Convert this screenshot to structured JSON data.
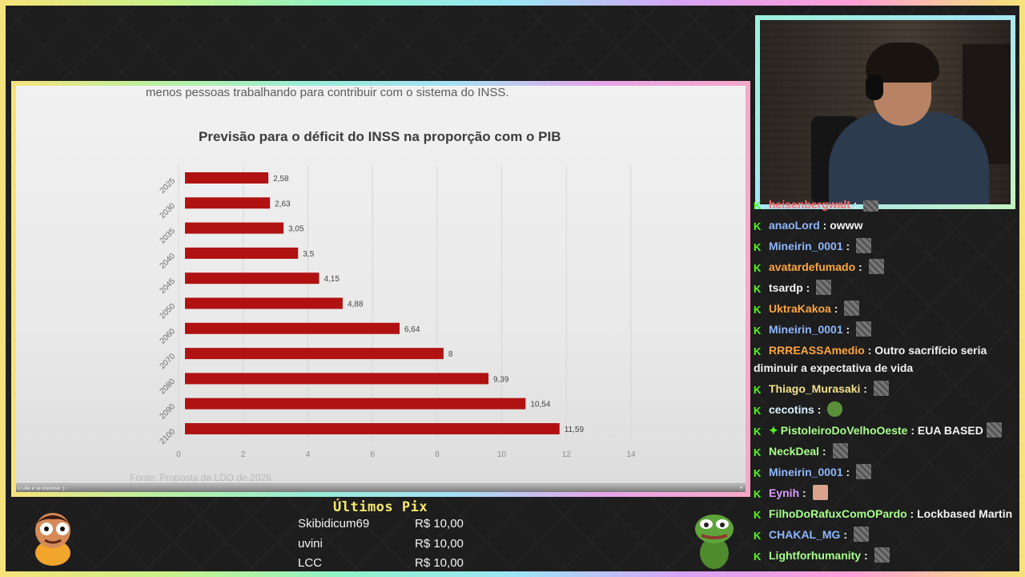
{
  "video": {
    "intro_text": "menos pessoas trabalhando para contribuir com o sistema do INSS.",
    "source_text": "Fonte: Proposta da LDO de 2026",
    "player_text": "o Like e se inscreve :)  ›",
    "player_icon": "⏸"
  },
  "chart_data": {
    "type": "bar",
    "orientation": "horizontal",
    "title": "Previsão para o déficit do INSS na proporção com o PIB",
    "categories": [
      "2025",
      "2030",
      "2035",
      "2040",
      "2045",
      "2050",
      "2060",
      "2070",
      "2080",
      "2090",
      "2100"
    ],
    "values": [
      2.58,
      2.63,
      3.05,
      3.5,
      4.15,
      4.88,
      6.64,
      8,
      9.39,
      10.54,
      11.59
    ],
    "value_labels": [
      "2,58",
      "2,63",
      "3,05",
      "3,5",
      "4,15",
      "4,88",
      "6,64",
      "8",
      "9,39",
      "10,54",
      "11,59"
    ],
    "xticks": [
      "0",
      "2",
      "4",
      "6",
      "8",
      "10",
      "12",
      "14"
    ],
    "xlim": [
      0,
      14
    ],
    "bar_color": "#b01212",
    "grid": true
  },
  "chat": {
    "messages": [
      {
        "user": "heisenbergwalt",
        "text": "",
        "color": "#ff6b6b",
        "emote": "gray"
      },
      {
        "user": "anaoLord",
        "text": "owww",
        "color": "#8fb7ff",
        "emote": ""
      },
      {
        "user": "Mineirin_0001",
        "text": "",
        "color": "#8fb7ff",
        "emote": "gray"
      },
      {
        "user": "avatardefumado",
        "text": "",
        "color": "#ffa63d",
        "emote": "gray"
      },
      {
        "user": "tsardp",
        "text": "",
        "color": "#f2f2f2",
        "emote": "gray"
      },
      {
        "user": "UktraKakoa",
        "text": "",
        "color": "#ffa63d",
        "emote": "gray"
      },
      {
        "user": "Mineirin_0001",
        "text": "",
        "color": "#8fb7ff",
        "emote": "gray"
      },
      {
        "user": "RRREASSAmedio",
        "text": "Outro sacrifício seria diminuir a expectativa de vida",
        "color": "#ffa63d",
        "emote": ""
      },
      {
        "user": "Thiago_Murasaki",
        "text": "",
        "color": "#f3e08c",
        "emote": "gray"
      },
      {
        "user": "cecotins",
        "text": "",
        "color": "#d8f2ff",
        "emote": "frog"
      },
      {
        "user": "PistoleiroDoVelhoOeste",
        "text": "EUA BASED",
        "color": "#a8ff8c",
        "emote": "gray",
        "badge": "✦"
      },
      {
        "user": "NeckDeal",
        "text": "",
        "color": "#a8ff8c",
        "emote": "gray"
      },
      {
        "user": "Mineirin_0001",
        "text": "",
        "color": "#8fb7ff",
        "emote": "gray"
      },
      {
        "user": "Eynih",
        "text": "",
        "color": "#d99bff",
        "emote": "girl"
      },
      {
        "user": "FilhoDoRafuxComOPardo",
        "text": "Lockbased Martin",
        "color": "#a8ff8c",
        "emote": ""
      },
      {
        "user": "CHAKAL_MG",
        "text": "",
        "color": "#8fb7ff",
        "emote": "gray"
      },
      {
        "user": "Lightforhumanity",
        "text": "",
        "color": "#a8ff8c",
        "emote": "gray"
      }
    ]
  },
  "pix": {
    "title": "Últimos Pix",
    "rows": [
      {
        "name": "Skibidicum69",
        "amount": "R$ 10,00"
      },
      {
        "name": "uvini",
        "amount": "R$ 10,00"
      },
      {
        "name": "LCC",
        "amount": "R$ 10,00"
      }
    ]
  },
  "icons": {
    "kick_badge": "K"
  }
}
